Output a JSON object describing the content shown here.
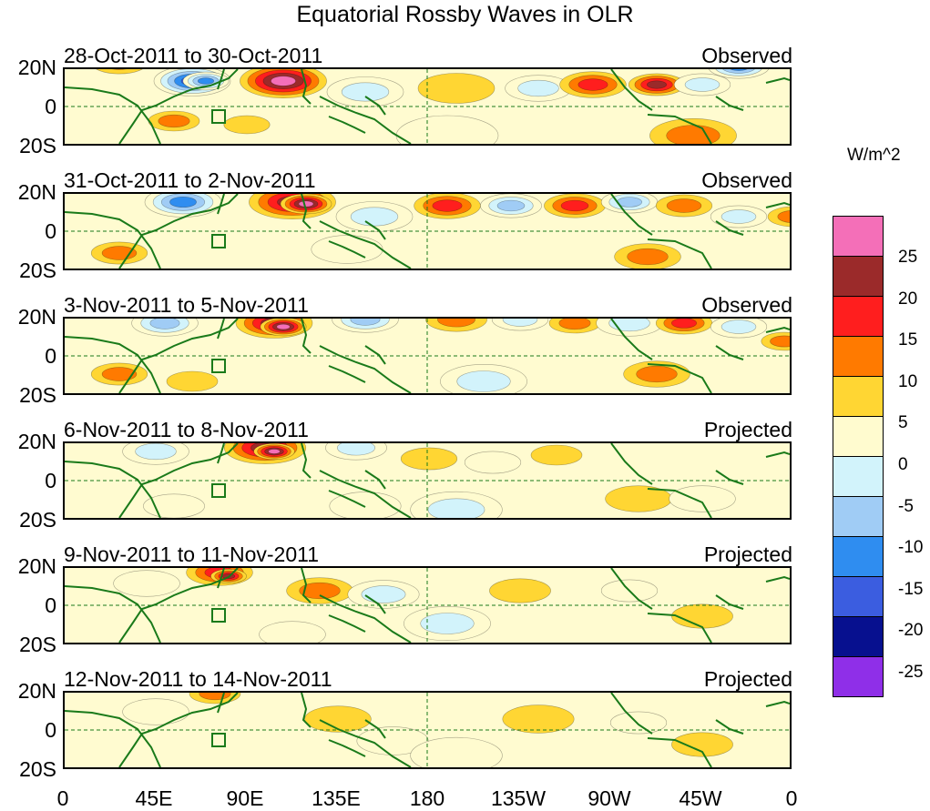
{
  "chart_data": {
    "type": "heatmap",
    "title": "Equatorial Rossby Waves in OLR",
    "colorbar": {
      "unit": "W/m^2",
      "levels": [
        "25",
        "20",
        "15",
        "10",
        "5",
        "0",
        "-5",
        "-10",
        "-15",
        "-20",
        "-25"
      ],
      "colors": [
        "#f46fb8",
        "#9b2a2a",
        "#ff1e1e",
        "#ff7a00",
        "#ffd633",
        "#fffbcf",
        "#d2f3fb",
        "#a0ccf5",
        "#2f8df0",
        "#3b5de0",
        "#07108f",
        "#8f2fe8"
      ]
    },
    "x_ticks": [
      "0",
      "45E",
      "90E",
      "135E",
      "180",
      "135W",
      "90W",
      "45W",
      "0"
    ],
    "y_ticks": [
      "20N",
      "0",
      "20S"
    ],
    "panels": [
      {
        "label": "28-Oct-2011 to 30-Oct-2011",
        "type": "Observed",
        "blobs": [
          [
            140,
            14,
            30,
            "-25"
          ],
          [
            240,
            14,
            34,
            "25"
          ],
          [
            155,
            14,
            18,
            "-20"
          ],
          [
            330,
            8,
            30,
            "-10"
          ],
          [
            430,
            10,
            30,
            "5"
          ],
          [
            520,
            10,
            26,
            "-10"
          ],
          [
            580,
            12,
            26,
            "15"
          ],
          [
            650,
            12,
            22,
            "20"
          ],
          [
            700,
            12,
            22,
            "-10"
          ],
          [
            740,
            22,
            24,
            "-20"
          ],
          [
            60,
            24,
            22,
            "10"
          ],
          [
            200,
            -10,
            18,
            "5"
          ],
          [
            420,
            -16,
            40,
            "-5"
          ],
          [
            690,
            -16,
            34,
            "10"
          ],
          [
            120,
            -8,
            20,
            "10"
          ]
        ]
      },
      {
        "label": "31-Oct-2011 to 2-Nov-2011",
        "type": "Observed",
        "blobs": [
          [
            130,
            16,
            30,
            "-20"
          ],
          [
            250,
            16,
            34,
            "20"
          ],
          [
            265,
            15,
            20,
            "25"
          ],
          [
            340,
            8,
            30,
            "-10"
          ],
          [
            420,
            14,
            26,
            "15"
          ],
          [
            490,
            14,
            24,
            "-15"
          ],
          [
            560,
            14,
            24,
            "15"
          ],
          [
            620,
            16,
            22,
            "-15"
          ],
          [
            680,
            14,
            22,
            "10"
          ],
          [
            740,
            8,
            22,
            "-10"
          ],
          [
            800,
            8,
            20,
            "10"
          ],
          [
            60,
            -12,
            22,
            "10"
          ],
          [
            310,
            -10,
            28,
            "-5"
          ],
          [
            640,
            -14,
            26,
            "10"
          ]
        ]
      },
      {
        "label": "3-Nov-2011 to 5-Nov-2011",
        "type": "Observed",
        "blobs": [
          [
            110,
            18,
            26,
            "-15"
          ],
          [
            230,
            18,
            30,
            "20"
          ],
          [
            240,
            16,
            18,
            "25"
          ],
          [
            330,
            20,
            26,
            "-15"
          ],
          [
            430,
            20,
            24,
            "10"
          ],
          [
            500,
            20,
            22,
            "-10"
          ],
          [
            560,
            18,
            20,
            "10"
          ],
          [
            620,
            18,
            26,
            "-10"
          ],
          [
            680,
            18,
            22,
            "15"
          ],
          [
            740,
            16,
            22,
            "-10"
          ],
          [
            790,
            8,
            18,
            "10"
          ],
          [
            60,
            -10,
            22,
            "10"
          ],
          [
            140,
            -14,
            20,
            "5"
          ],
          [
            460,
            -14,
            34,
            "-10"
          ],
          [
            650,
            -10,
            26,
            "10"
          ]
        ]
      },
      {
        "label": "6-Nov-2011 to 8-Nov-2011",
        "type": "Projected",
        "blobs": [
          [
            100,
            16,
            26,
            "-10"
          ],
          [
            220,
            18,
            32,
            "20"
          ],
          [
            230,
            16,
            16,
            "25"
          ],
          [
            320,
            18,
            24,
            "-10"
          ],
          [
            400,
            12,
            22,
            "5"
          ],
          [
            470,
            10,
            22,
            "-5"
          ],
          [
            540,
            14,
            20,
            "5"
          ],
          [
            430,
            -16,
            36,
            "-10"
          ],
          [
            120,
            -14,
            24,
            "-5"
          ],
          [
            330,
            -14,
            28,
            "-5"
          ],
          [
            630,
            -10,
            26,
            "5"
          ],
          [
            700,
            -10,
            26,
            "-5"
          ]
        ]
      },
      {
        "label": "9-Nov-2011 to 11-Nov-2011",
        "type": "Projected",
        "blobs": [
          [
            170,
            18,
            26,
            "15"
          ],
          [
            180,
            16,
            14,
            "20"
          ],
          [
            90,
            12,
            26,
            "-5"
          ],
          [
            280,
            8,
            26,
            "10"
          ],
          [
            350,
            6,
            28,
            "-10"
          ],
          [
            420,
            -10,
            34,
            "-10"
          ],
          [
            500,
            8,
            24,
            "5"
          ],
          [
            620,
            8,
            22,
            "-5"
          ],
          [
            700,
            -6,
            24,
            "5"
          ],
          [
            250,
            -16,
            26,
            "-5"
          ]
        ]
      },
      {
        "label": "12-Nov-2011 to 14-Nov-2011",
        "type": "Projected",
        "blobs": [
          [
            165,
            20,
            20,
            "10"
          ],
          [
            100,
            10,
            26,
            "-5"
          ],
          [
            300,
            6,
            26,
            "5"
          ],
          [
            360,
            -6,
            28,
            "-5"
          ],
          [
            430,
            -14,
            36,
            "-5"
          ],
          [
            520,
            6,
            28,
            "5"
          ],
          [
            630,
            4,
            22,
            "-5"
          ],
          [
            700,
            -8,
            24,
            "5"
          ]
        ]
      }
    ]
  }
}
